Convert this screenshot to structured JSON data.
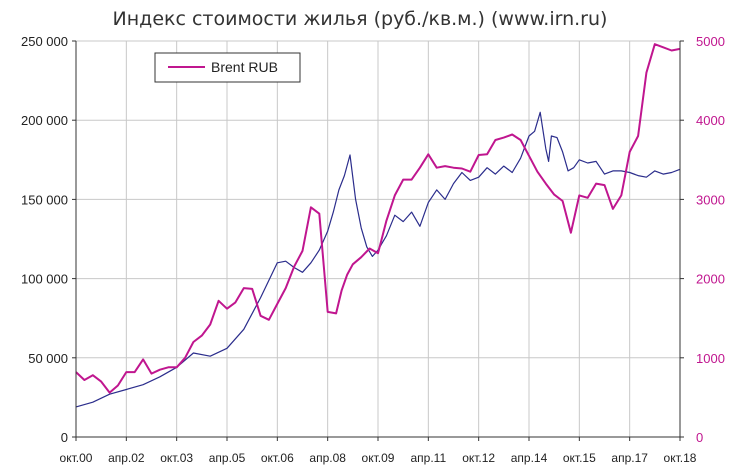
{
  "chart_data": {
    "type": "line",
    "title": "Индекс стоимости жилья (руб./кв.м.) (www.irn.ru)",
    "legend": {
      "entries": [
        "Brent RUB"
      ],
      "placement": "top-left"
    },
    "grid": true,
    "colors": {
      "housing": "#2b2d8c",
      "brent": "#c0168f",
      "grid": "#c8c8c8",
      "axis": "#333333"
    },
    "x_axis": {
      "ticks": [
        "окт.00",
        "апр.02",
        "окт.03",
        "апр.05",
        "окт.06",
        "апр.08",
        "окт.09",
        "апр.11",
        "окт.12",
        "апр.14",
        "окт.15",
        "апр.17",
        "окт.18"
      ],
      "tick_t": [
        0,
        18,
        36,
        54,
        72,
        90,
        108,
        126,
        144,
        162,
        180,
        198,
        216
      ],
      "range": [
        0,
        216
      ]
    },
    "y_left": {
      "ylim": [
        0,
        250000
      ],
      "ticks": [
        "0",
        "50 000",
        "100 000",
        "150 000",
        "200 000",
        "250 000"
      ],
      "tick_values": [
        0,
        50000,
        100000,
        150000,
        200000,
        250000
      ]
    },
    "y_right": {
      "ylim": [
        0,
        5000
      ],
      "ticks": [
        "0",
        "1000",
        "2000",
        "3000",
        "4000",
        "5000"
      ],
      "tick_values": [
        0,
        1000,
        2000,
        3000,
        4000,
        5000
      ]
    },
    "series": [
      {
        "axis": "left",
        "t": [
          0,
          6,
          12,
          18,
          24,
          30,
          36,
          42,
          48,
          54,
          60,
          66,
          72,
          75,
          78,
          81,
          84,
          87,
          90,
          92,
          94,
          96,
          98,
          100,
          102,
          104,
          106,
          108,
          111,
          114,
          117,
          120,
          123,
          126,
          129,
          132,
          135,
          138,
          141,
          144,
          147,
          150,
          153,
          156,
          159,
          162,
          164,
          166,
          168,
          169,
          170,
          172,
          174,
          176,
          178,
          180,
          183,
          186,
          189,
          192,
          195,
          198,
          201,
          204,
          207,
          210,
          213,
          216
        ],
        "values": [
          19000,
          22000,
          27000,
          30000,
          33000,
          38000,
          44000,
          53000,
          51000,
          56000,
          68000,
          88000,
          110000,
          111000,
          107000,
          104000,
          110000,
          118000,
          130000,
          142000,
          156000,
          165000,
          178000,
          150000,
          132000,
          120000,
          114000,
          118000,
          127000,
          140000,
          136000,
          142000,
          133000,
          148000,
          156000,
          150000,
          160000,
          167000,
          162000,
          164000,
          170000,
          166000,
          171000,
          167000,
          176000,
          190000,
          193000,
          205000,
          182000,
          174000,
          190000,
          189000,
          180000,
          168000,
          170000,
          175000,
          173000,
          174000,
          166000,
          168000,
          168000,
          167000,
          165000,
          164000,
          168000,
          166000,
          167000,
          169000
        ]
      },
      {
        "name": "Brent RUB",
        "axis": "right",
        "t": [
          0,
          3,
          6,
          9,
          12,
          15,
          18,
          21,
          24,
          27,
          30,
          33,
          36,
          39,
          42,
          45,
          48,
          51,
          54,
          57,
          60,
          63,
          66,
          69,
          72,
          75,
          78,
          81,
          84,
          87,
          90,
          93,
          95,
          97,
          99,
          102,
          105,
          108,
          111,
          114,
          117,
          120,
          123,
          126,
          129,
          132,
          135,
          138,
          141,
          144,
          147,
          150,
          153,
          156,
          159,
          162,
          165,
          168,
          171,
          174,
          177,
          180,
          183,
          186,
          189,
          192,
          195,
          198,
          201,
          204,
          207,
          210,
          213,
          216
        ],
        "values": [
          820,
          720,
          780,
          700,
          560,
          650,
          820,
          820,
          980,
          800,
          850,
          880,
          880,
          1000,
          1200,
          1280,
          1420,
          1720,
          1620,
          1700,
          1880,
          1870,
          1530,
          1480,
          1680,
          1880,
          2150,
          2350,
          2900,
          2820,
          1580,
          1560,
          1850,
          2050,
          2180,
          2270,
          2380,
          2320,
          2730,
          3050,
          3250,
          3250,
          3400,
          3570,
          3400,
          3420,
          3400,
          3390,
          3350,
          3560,
          3570,
          3750,
          3780,
          3820,
          3750,
          3550,
          3350,
          3200,
          3060,
          2980,
          2580,
          3050,
          3020,
          3200,
          3180,
          2880,
          3050,
          3600,
          3800,
          4600,
          4960,
          4920,
          4880,
          4900
        ]
      }
    ]
  }
}
